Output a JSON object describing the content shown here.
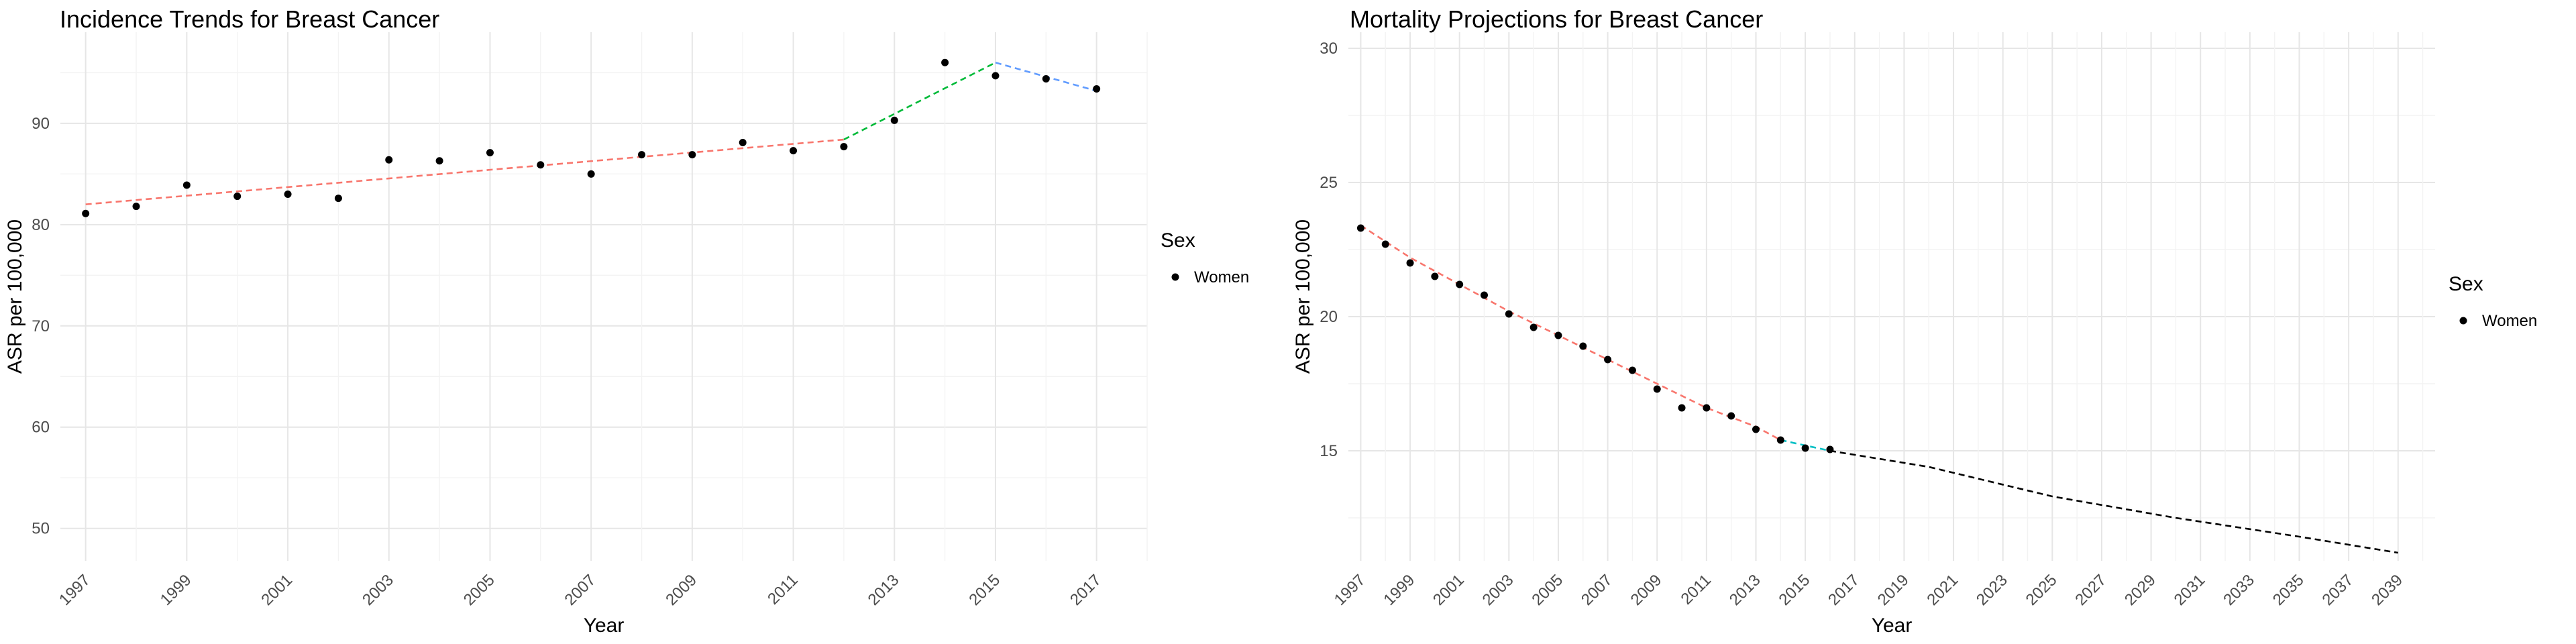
{
  "charts": [
    {
      "title": "Incidence Trends for Breast Cancer",
      "xlabel": "Year",
      "ylabel": "ASR per 100,000",
      "legend_title": "Sex",
      "legend_label": "Women"
    },
    {
      "title": "Mortality Projections for Breast Cancer",
      "xlabel": "Year",
      "ylabel": "ASR per 100,000",
      "legend_title": "Sex",
      "legend_label": "Women"
    }
  ],
  "chart_data": [
    {
      "type": "scatter",
      "title": "Incidence Trends for Breast Cancer",
      "xlabel": "Year",
      "ylabel": "ASR per 100,000",
      "xlim": [
        1996.5,
        2018.0
      ],
      "ylim": [
        46.8,
        99.0
      ],
      "grid": true,
      "legend": "right",
      "x_ticks": [
        "1997",
        "1999",
        "2001",
        "2003",
        "2005",
        "2007",
        "2009",
        "2011",
        "2013",
        "2015",
        "2017"
      ],
      "y_ticks": [
        50,
        60,
        70,
        80,
        90
      ],
      "series": [
        {
          "name": "Women",
          "x": [
            1997,
            1998,
            1999,
            2000,
            2001,
            2002,
            2003,
            2004,
            2005,
            2006,
            2007,
            2008,
            2009,
            2010,
            2011,
            2012,
            2013,
            2014,
            2015,
            2016,
            2017
          ],
          "y": [
            81.1,
            81.8,
            83.9,
            82.8,
            83.0,
            82.6,
            86.4,
            86.3,
            87.1,
            85.9,
            85.0,
            86.9,
            86.9,
            88.1,
            87.3,
            87.7,
            90.3,
            96.0,
            94.7,
            94.4,
            93.4
          ]
        }
      ],
      "trend_segments": [
        {
          "x": [
            1997,
            2012
          ],
          "y": [
            82.0,
            88.4
          ],
          "color": "#F8766D"
        },
        {
          "x": [
            2012,
            2015
          ],
          "y": [
            88.4,
            96.0
          ],
          "color": "#00BA38"
        },
        {
          "x": [
            2015,
            2017
          ],
          "y": [
            96.0,
            93.2
          ],
          "color": "#619CFF"
        }
      ]
    },
    {
      "type": "scatter",
      "title": "Mortality Projections for Breast Cancer",
      "xlabel": "Year",
      "ylabel": "ASR per 100,000",
      "xlim": [
        1996.5,
        2040.5
      ],
      "ylim": [
        10.9,
        30.6
      ],
      "grid": true,
      "legend": "right",
      "x_ticks": [
        "1997",
        "1999",
        "2001",
        "2003",
        "2005",
        "2007",
        "2009",
        "2011",
        "2013",
        "2015",
        "2017",
        "2019",
        "2021",
        "2023",
        "2025",
        "2027",
        "2029",
        "2031",
        "2033",
        "2035",
        "2037",
        "2039"
      ],
      "y_ticks": [
        15,
        20,
        25,
        30
      ],
      "series": [
        {
          "name": "Women",
          "x": [
            1997,
            1998,
            1999,
            2000,
            2001,
            2002,
            2003,
            2004,
            2005,
            2006,
            2007,
            2008,
            2009,
            2010,
            2011,
            2012,
            2013,
            2014,
            2015,
            2016
          ],
          "y": [
            23.3,
            22.7,
            22.0,
            21.5,
            21.2,
            20.8,
            20.1,
            19.6,
            19.3,
            18.9,
            18.4,
            18.0,
            17.3,
            16.6,
            16.6,
            16.3,
            15.8,
            15.4,
            15.1,
            15.05
          ]
        }
      ],
      "trend_segments": [
        {
          "x": [
            1997,
            1999,
            2001,
            2003,
            2005,
            2007,
            2009,
            2011,
            2013,
            2014
          ],
          "y": [
            23.4,
            22.2,
            21.2,
            20.2,
            19.3,
            18.4,
            17.5,
            16.6,
            15.9,
            15.4
          ],
          "color": "#F8766D"
        },
        {
          "x": [
            2014,
            2015,
            2016
          ],
          "y": [
            15.4,
            15.2,
            15.0
          ],
          "color": "#00BFC4"
        },
        {
          "x": [
            2016,
            2020,
            2025,
            2030,
            2035,
            2039
          ],
          "y": [
            15.0,
            14.4,
            13.3,
            12.5,
            11.8,
            11.2
          ],
          "color": "#000000"
        }
      ]
    }
  ]
}
